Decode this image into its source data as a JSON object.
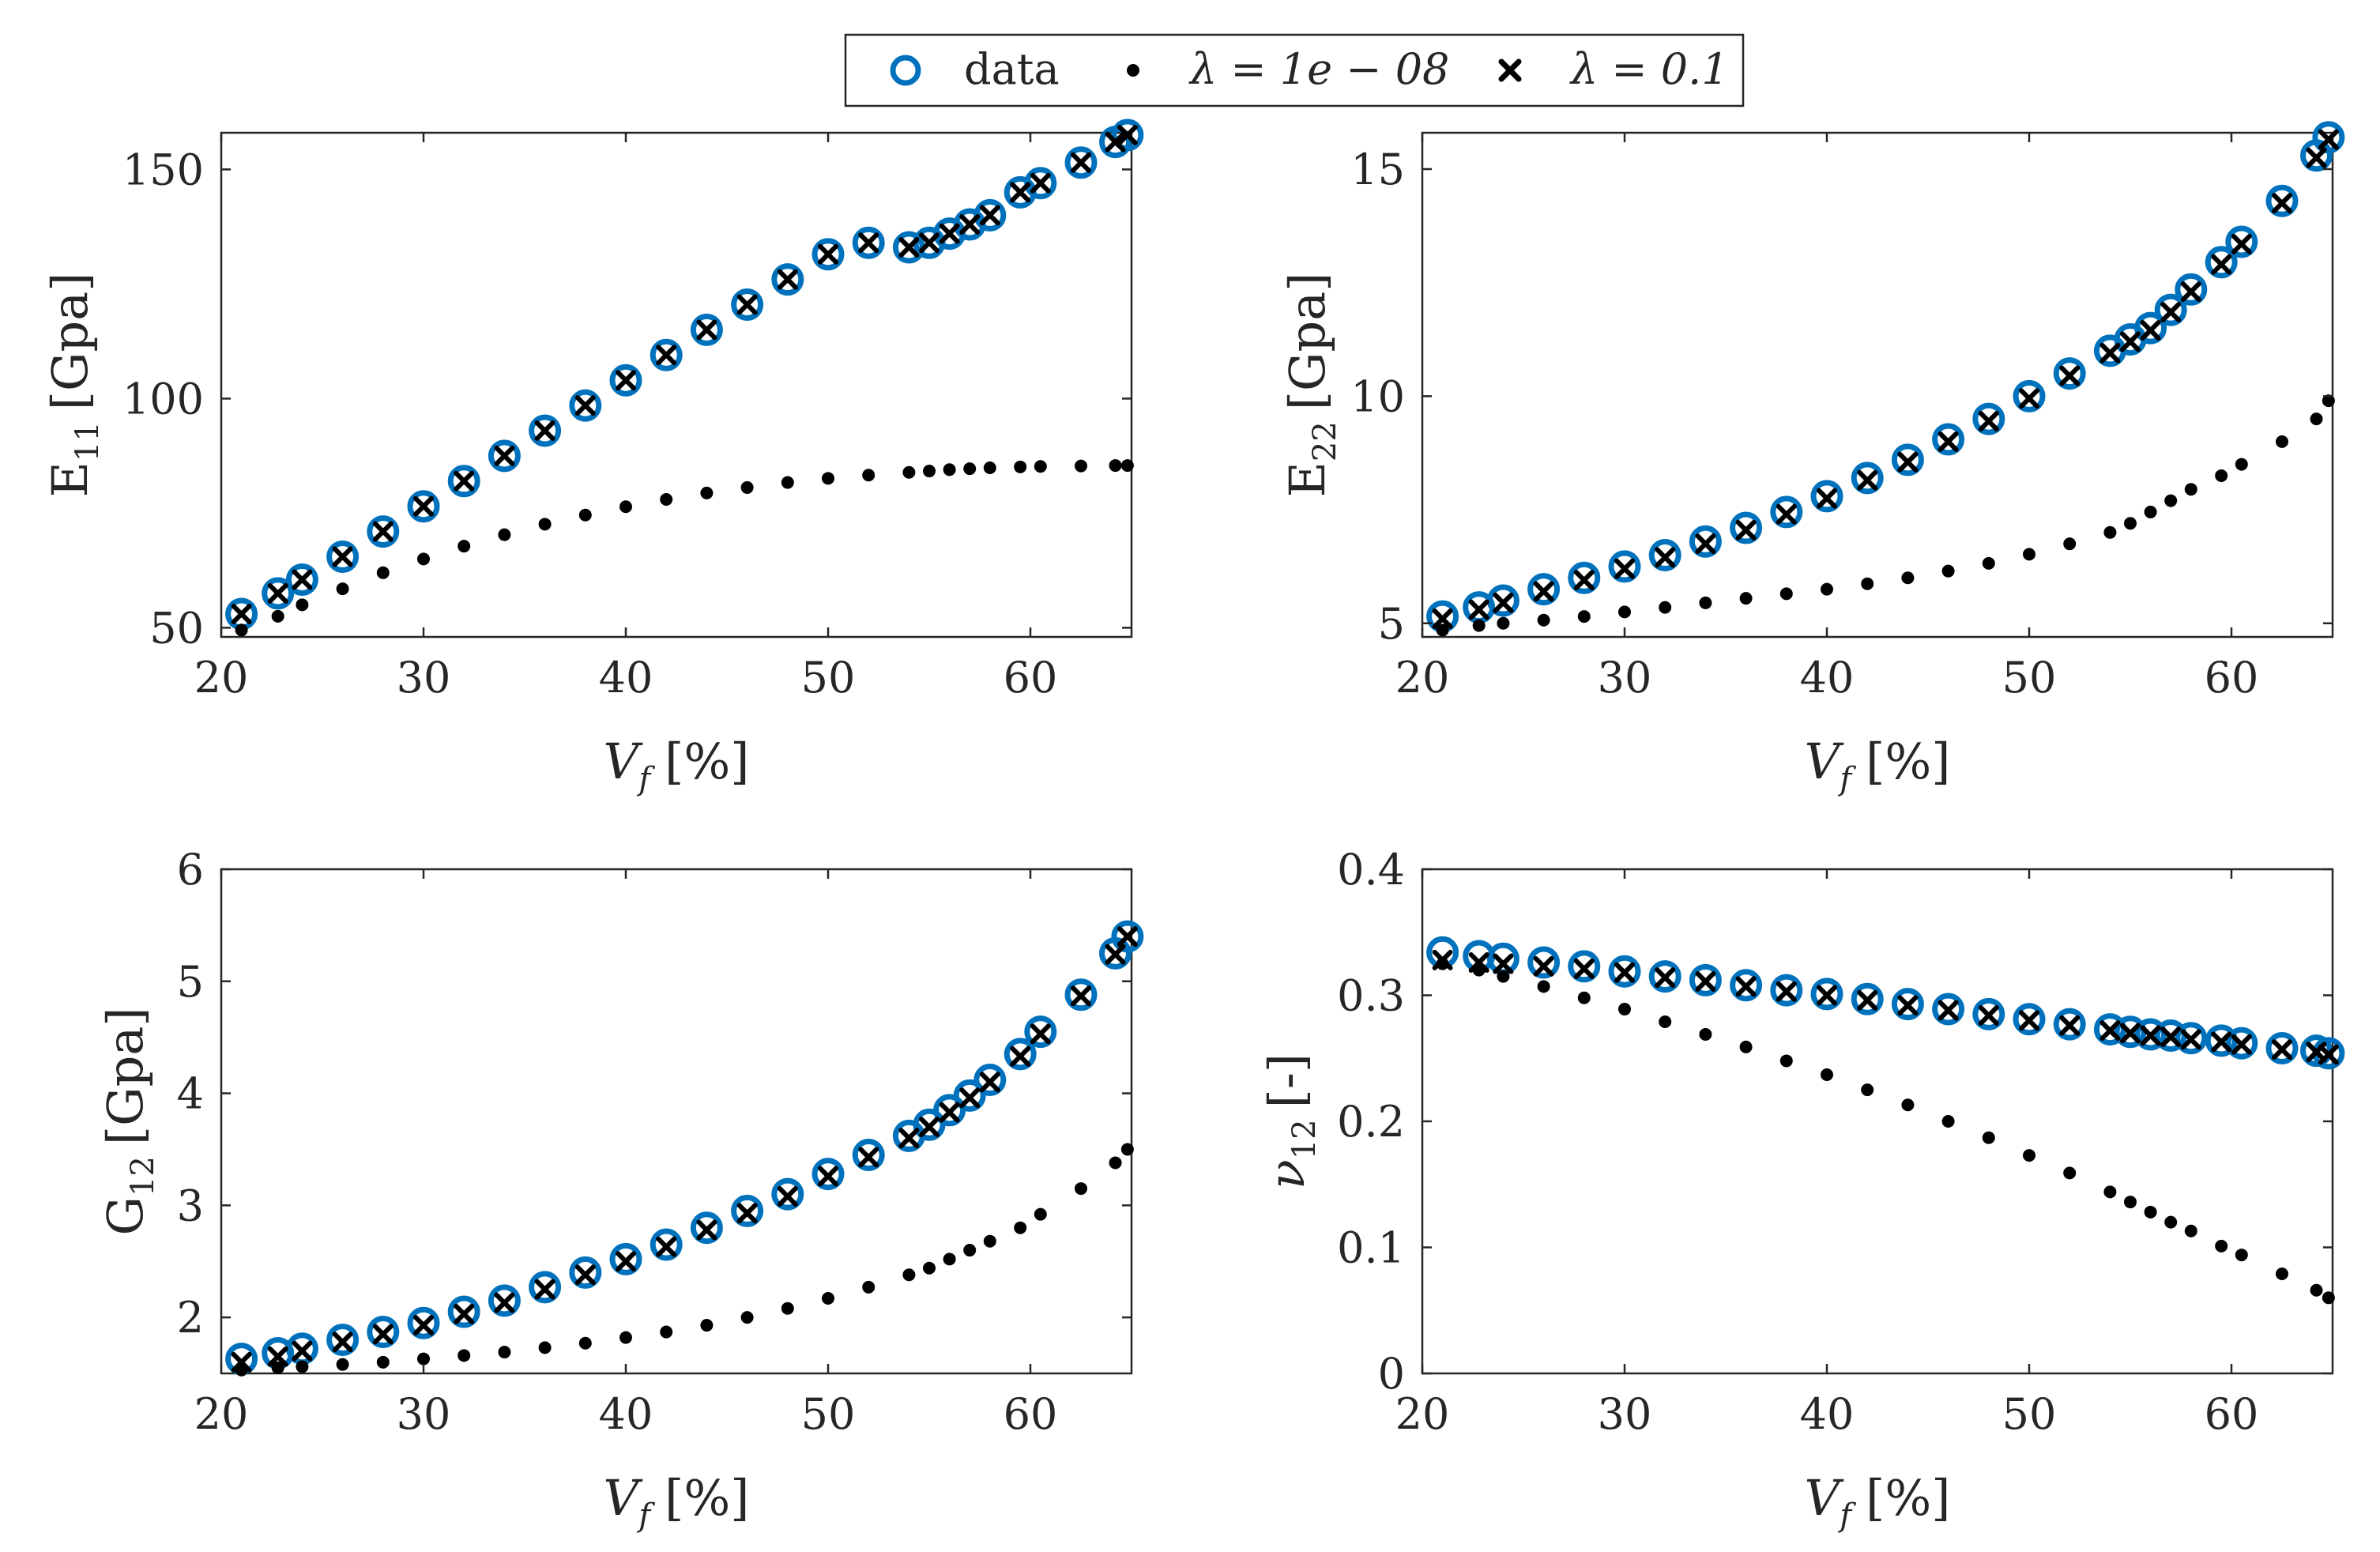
{
  "colors": {
    "data_marker": "#0072BD",
    "fit_marker": "#000000",
    "axis": "#262626"
  },
  "legend": {
    "entries": [
      {
        "label": "data",
        "marker": "circle"
      },
      {
        "label": "λ = 1e − 08",
        "marker": "dot"
      },
      {
        "label": "λ = 0.1",
        "marker": "x"
      }
    ]
  },
  "chart_data": [
    {
      "type": "scatter",
      "title": "",
      "xlabel": "V_f [%]",
      "xlabel_main": "V",
      "xlabel_sub": "f",
      "xlabel_rest": "[%]",
      "ylabel": "E11 [Gpa]",
      "ylabel_main": "E",
      "ylabel_sub": "11",
      "ylabel_rest": "[Gpa]",
      "xlim": [
        20,
        65
      ],
      "ylim": [
        48,
        158
      ],
      "xticks": [
        "20",
        "30",
        "40",
        "50",
        "60"
      ],
      "xtick_values": [
        20,
        30,
        40,
        50,
        60
      ],
      "yticks": [
        "50",
        "100",
        "150"
      ],
      "ytick_values": [
        50,
        100,
        150
      ],
      "series": [
        {
          "name": "data",
          "marker": "circle",
          "x": [
            21,
            22.8,
            24,
            26,
            28,
            30,
            32,
            34,
            36,
            38,
            40,
            42,
            44,
            46,
            48,
            50,
            52,
            54,
            55,
            56,
            57,
            58,
            59.5,
            60.5,
            62.5,
            64.2,
            64.8
          ],
          "y": [
            53,
            57.5,
            60.5,
            65.5,
            71,
            76.5,
            82,
            87.5,
            93,
            98.5,
            104,
            109.5,
            115,
            120.5,
            126,
            131.5,
            134,
            133,
            134,
            136,
            138,
            140,
            145,
            147,
            151.5,
            156,
            157.5
          ]
        },
        {
          "name": "λ = 1e − 08",
          "marker": "dot",
          "x": [
            21,
            22.8,
            24,
            26,
            28,
            30,
            32,
            34,
            36,
            38,
            40,
            42,
            44,
            46,
            48,
            50,
            52,
            54,
            55,
            56,
            57,
            58,
            59.5,
            60.5,
            62.5,
            64.2,
            64.8
          ],
          "y": [
            49.5,
            52.5,
            55,
            58.5,
            62,
            65,
            67.8,
            70.3,
            72.6,
            74.6,
            76.4,
            78,
            79.4,
            80.6,
            81.7,
            82.6,
            83.3,
            83.9,
            84.2,
            84.5,
            84.7,
            84.9,
            85.1,
            85.2,
            85.3,
            85.4,
            85.4
          ]
        },
        {
          "name": "λ = 0.1",
          "marker": "x",
          "x": [
            21,
            22.8,
            24,
            26,
            28,
            30,
            32,
            34,
            36,
            38,
            40,
            42,
            44,
            46,
            48,
            50,
            52,
            54,
            55,
            56,
            57,
            58,
            59.5,
            60.5,
            62.5,
            64.2,
            64.8
          ],
          "y": [
            53,
            57.5,
            60.5,
            65.5,
            71,
            76.5,
            82,
            87.5,
            93,
            98.5,
            104,
            109.5,
            115,
            120.5,
            126,
            131.5,
            134,
            133,
            134,
            136,
            138,
            140,
            145,
            147,
            151.5,
            156,
            157.5
          ]
        }
      ]
    },
    {
      "type": "scatter",
      "title": "",
      "xlabel": "V_f [%]",
      "xlabel_main": "V",
      "xlabel_sub": "f",
      "xlabel_rest": "[%]",
      "ylabel": "E22 [Gpa]",
      "ylabel_main": "E",
      "ylabel_sub": "22",
      "ylabel_rest": "[Gpa]",
      "xlim": [
        20,
        65
      ],
      "ylim": [
        4.7,
        15.8
      ],
      "xticks": [
        "20",
        "30",
        "40",
        "50",
        "60"
      ],
      "xtick_values": [
        20,
        30,
        40,
        50,
        60
      ],
      "yticks": [
        "5",
        "10",
        "15"
      ],
      "ytick_values": [
        5,
        10,
        15
      ],
      "series": [
        {
          "name": "data",
          "marker": "circle",
          "x": [
            21,
            22.8,
            24,
            26,
            28,
            30,
            32,
            34,
            36,
            38,
            40,
            42,
            44,
            46,
            48,
            50,
            52,
            54,
            55,
            56,
            57,
            58,
            59.5,
            60.5,
            62.5,
            64.2,
            64.8
          ],
          "y": [
            5.15,
            5.35,
            5.5,
            5.75,
            6.0,
            6.25,
            6.5,
            6.8,
            7.1,
            7.45,
            7.8,
            8.2,
            8.6,
            9.05,
            9.5,
            10.0,
            10.5,
            11.0,
            11.25,
            11.5,
            11.9,
            12.35,
            12.95,
            13.4,
            14.3,
            15.3,
            15.7
          ]
        },
        {
          "name": "λ = 1e − 08",
          "marker": "dot",
          "x": [
            21,
            22.8,
            24,
            26,
            28,
            30,
            32,
            34,
            36,
            38,
            40,
            42,
            44,
            46,
            48,
            50,
            52,
            54,
            55,
            56,
            57,
            58,
            59.5,
            60.5,
            62.5,
            64.2,
            64.8
          ],
          "y": [
            4.85,
            4.95,
            5.0,
            5.07,
            5.15,
            5.25,
            5.35,
            5.45,
            5.55,
            5.65,
            5.75,
            5.87,
            6.0,
            6.15,
            6.32,
            6.52,
            6.75,
            7.0,
            7.2,
            7.45,
            7.7,
            7.95,
            8.25,
            8.5,
            9.0,
            9.5,
            9.9
          ]
        },
        {
          "name": "λ = 0.1",
          "marker": "x",
          "x": [
            21,
            22.8,
            24,
            26,
            28,
            30,
            32,
            34,
            36,
            38,
            40,
            42,
            44,
            46,
            48,
            50,
            52,
            54,
            55,
            56,
            57,
            58,
            59.5,
            60.5,
            62.5,
            64.2,
            64.8
          ],
          "y": [
            5.1,
            5.3,
            5.45,
            5.7,
            5.95,
            6.2,
            6.45,
            6.75,
            7.05,
            7.4,
            7.75,
            8.15,
            8.55,
            9.0,
            9.45,
            9.95,
            10.45,
            10.95,
            11.2,
            11.45,
            11.85,
            12.3,
            12.9,
            13.35,
            14.25,
            15.25,
            15.65
          ]
        }
      ]
    },
    {
      "type": "scatter",
      "title": "",
      "xlabel": "V_f [%]",
      "xlabel_main": "V",
      "xlabel_sub": "f",
      "xlabel_rest": "[%]",
      "ylabel": "G12 [Gpa]",
      "ylabel_main": "G",
      "ylabel_sub": "12",
      "ylabel_rest": "[Gpa]",
      "xlim": [
        20,
        65
      ],
      "ylim": [
        1.5,
        6
      ],
      "xticks": [
        "20",
        "30",
        "40",
        "50",
        "60"
      ],
      "xtick_values": [
        20,
        30,
        40,
        50,
        60
      ],
      "yticks": [
        "2",
        "3",
        "4",
        "5",
        "6"
      ],
      "ytick_values": [
        2,
        3,
        4,
        5,
        6
      ],
      "series": [
        {
          "name": "data",
          "marker": "circle",
          "x": [
            21,
            22.8,
            24,
            26,
            28,
            30,
            32,
            34,
            36,
            38,
            40,
            42,
            44,
            46,
            48,
            50,
            52,
            54,
            55,
            56,
            57,
            58,
            59.5,
            60.5,
            62.5,
            64.2,
            64.8
          ],
          "y": [
            1.63,
            1.68,
            1.72,
            1.8,
            1.87,
            1.95,
            2.05,
            2.15,
            2.27,
            2.4,
            2.52,
            2.65,
            2.8,
            2.95,
            3.1,
            3.28,
            3.45,
            3.62,
            3.72,
            3.85,
            3.98,
            4.12,
            4.35,
            4.55,
            4.88,
            5.25,
            5.4
          ]
        },
        {
          "name": "λ = 1e − 08",
          "marker": "dot",
          "x": [
            21,
            22.8,
            24,
            26,
            28,
            30,
            32,
            34,
            36,
            38,
            40,
            42,
            44,
            46,
            48,
            50,
            52,
            54,
            55,
            56,
            57,
            58,
            59.5,
            60.5,
            62.5,
            64.2,
            64.8
          ],
          "y": [
            1.53,
            1.55,
            1.56,
            1.58,
            1.6,
            1.63,
            1.66,
            1.69,
            1.73,
            1.77,
            1.82,
            1.87,
            1.93,
            2.0,
            2.08,
            2.17,
            2.27,
            2.38,
            2.44,
            2.52,
            2.6,
            2.68,
            2.8,
            2.92,
            3.15,
            3.38,
            3.5
          ]
        },
        {
          "name": "λ = 0.1",
          "marker": "x",
          "x": [
            21,
            22.8,
            24,
            26,
            28,
            30,
            32,
            34,
            36,
            38,
            40,
            42,
            44,
            46,
            48,
            50,
            52,
            54,
            55,
            56,
            57,
            58,
            59.5,
            60.5,
            62.5,
            64.2,
            64.8
          ],
          "y": [
            1.6,
            1.65,
            1.7,
            1.78,
            1.85,
            1.93,
            2.03,
            2.13,
            2.25,
            2.38,
            2.5,
            2.63,
            2.78,
            2.93,
            3.08,
            3.26,
            3.43,
            3.6,
            3.7,
            3.83,
            3.96,
            4.1,
            4.33,
            4.53,
            4.87,
            5.24,
            5.4
          ]
        }
      ]
    },
    {
      "type": "scatter",
      "title": "",
      "xlabel": "V_f [%]",
      "xlabel_main": "V",
      "xlabel_sub": "f",
      "xlabel_rest": "[%]",
      "ylabel": "ν12 [-]",
      "ylabel_main": "ν",
      "ylabel_sub": "12",
      "ylabel_rest": "[-]",
      "xlim": [
        20,
        65
      ],
      "ylim": [
        0,
        0.4
      ],
      "xticks": [
        "20",
        "30",
        "40",
        "50",
        "60"
      ],
      "xtick_values": [
        20,
        30,
        40,
        50,
        60
      ],
      "yticks": [
        "0",
        "0.1",
        "0.2",
        "0.3",
        "0.4"
      ],
      "ytick_values": [
        0,
        0.1,
        0.2,
        0.3,
        0.4
      ],
      "series": [
        {
          "name": "data",
          "marker": "circle",
          "x": [
            21,
            22.8,
            24,
            26,
            28,
            30,
            32,
            34,
            36,
            38,
            40,
            42,
            44,
            46,
            48,
            50,
            52,
            54,
            55,
            56,
            57,
            58,
            59.5,
            60.5,
            62.5,
            64.2,
            64.8
          ],
          "y": [
            0.334,
            0.331,
            0.329,
            0.326,
            0.323,
            0.319,
            0.315,
            0.312,
            0.308,
            0.304,
            0.301,
            0.297,
            0.293,
            0.289,
            0.285,
            0.281,
            0.277,
            0.273,
            0.271,
            0.269,
            0.268,
            0.266,
            0.264,
            0.262,
            0.258,
            0.256,
            0.254
          ]
        },
        {
          "name": "λ = 1e − 08",
          "marker": "dot",
          "x": [
            21,
            22.8,
            24,
            26,
            28,
            30,
            32,
            34,
            36,
            38,
            40,
            42,
            44,
            46,
            48,
            50,
            52,
            54,
            55,
            56,
            57,
            58,
            59.5,
            60.5,
            62.5,
            64.2,
            64.8
          ],
          "y": [
            0.325,
            0.32,
            0.315,
            0.307,
            0.298,
            0.289,
            0.279,
            0.269,
            0.259,
            0.248,
            0.237,
            0.225,
            0.213,
            0.2,
            0.187,
            0.173,
            0.159,
            0.144,
            0.136,
            0.128,
            0.12,
            0.113,
            0.101,
            0.094,
            0.079,
            0.066,
            0.06
          ]
        },
        {
          "name": "λ = 0.1",
          "marker": "x",
          "x": [
            21,
            22.8,
            24,
            26,
            28,
            30,
            32,
            34,
            36,
            38,
            40,
            42,
            44,
            46,
            48,
            50,
            52,
            54,
            55,
            56,
            57,
            58,
            59.5,
            60.5,
            62.5,
            64.2,
            64.8
          ],
          "y": [
            0.328,
            0.326,
            0.325,
            0.323,
            0.321,
            0.318,
            0.314,
            0.311,
            0.307,
            0.303,
            0.3,
            0.296,
            0.292,
            0.288,
            0.284,
            0.28,
            0.276,
            0.272,
            0.27,
            0.268,
            0.267,
            0.265,
            0.263,
            0.261,
            0.257,
            0.255,
            0.253
          ]
        }
      ]
    }
  ]
}
